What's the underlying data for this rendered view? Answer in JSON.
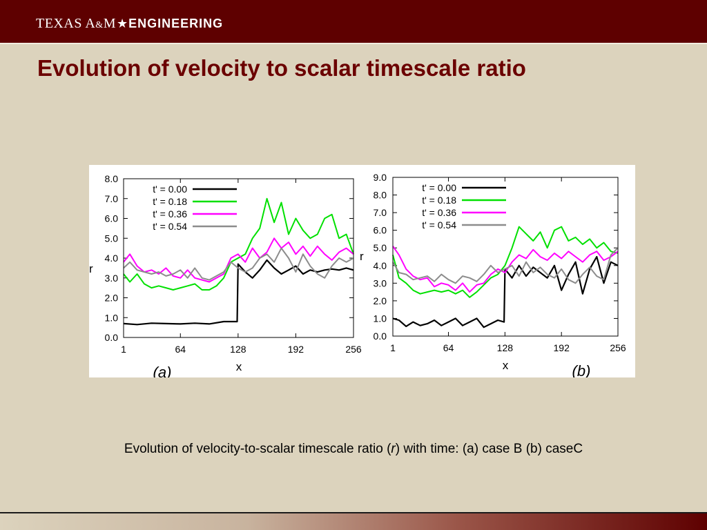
{
  "header": {
    "logo_text_1": "TEXAS A",
    "logo_amp": "&",
    "logo_text_2": "M",
    "logo_star": "★",
    "logo_text_3": "ENGINEERING"
  },
  "slide": {
    "title": "Evolution of velocity to scalar timescale ratio",
    "caption_pre": "Evolution of velocity-to-scalar timescale ratio (",
    "caption_var": "r",
    "caption_post": ") with time: (a) case B (b) caseC"
  },
  "colors": {
    "header_bg": "#5e0000",
    "title": "#6b0000",
    "slide_bg": "#dcd3bd",
    "series": [
      "#000000",
      "#00e000",
      "#ff00ff",
      "#8c8c8c"
    ]
  },
  "chart_data": [
    {
      "type": "line",
      "panel_label": "(a)",
      "xlabel": "x",
      "ylabel": "r",
      "xlim": [
        1,
        256
      ],
      "ylim": [
        0,
        8
      ],
      "xticks": [
        "1",
        "64",
        "128",
        "192",
        "256"
      ],
      "yticks": [
        "0.0",
        "1.0",
        "2.0",
        "3.0",
        "4.0",
        "5.0",
        "6.0",
        "7.0",
        "8.0"
      ],
      "legend": "top-left",
      "series": [
        {
          "name": "t' = 0.00",
          "x": [
            1,
            16,
            32,
            48,
            64,
            80,
            96,
            112,
            127,
            128,
            136,
            144,
            152,
            160,
            168,
            176,
            184,
            192,
            200,
            208,
            216,
            224,
            232,
            240,
            248,
            256
          ],
          "y": [
            0.7,
            0.65,
            0.72,
            0.7,
            0.68,
            0.72,
            0.68,
            0.8,
            0.8,
            3.7,
            3.3,
            3.0,
            3.4,
            3.9,
            3.5,
            3.2,
            3.4,
            3.6,
            3.2,
            3.4,
            3.3,
            3.4,
            3.45,
            3.4,
            3.5,
            3.4
          ]
        },
        {
          "name": "t' = 0.18",
          "x": [
            1,
            8,
            16,
            24,
            32,
            40,
            48,
            56,
            64,
            72,
            80,
            88,
            96,
            104,
            112,
            120,
            128,
            136,
            144,
            152,
            160,
            168,
            176,
            184,
            192,
            200,
            208,
            216,
            224,
            232,
            240,
            248,
            256
          ],
          "y": [
            3.2,
            2.8,
            3.2,
            2.7,
            2.5,
            2.6,
            2.5,
            2.4,
            2.5,
            2.6,
            2.7,
            2.4,
            2.4,
            2.6,
            3.0,
            3.8,
            4.0,
            4.2,
            5.0,
            5.5,
            7.0,
            5.8,
            6.8,
            5.2,
            6.0,
            5.4,
            5.0,
            5.2,
            6.0,
            6.2,
            5.0,
            5.2,
            4.2
          ]
        },
        {
          "name": "t' = 0.36",
          "x": [
            1,
            8,
            16,
            24,
            32,
            40,
            48,
            56,
            64,
            72,
            80,
            88,
            96,
            104,
            112,
            120,
            128,
            136,
            144,
            152,
            160,
            168,
            176,
            184,
            192,
            200,
            208,
            216,
            224,
            232,
            240,
            248,
            256
          ],
          "y": [
            3.8,
            4.2,
            3.6,
            3.3,
            3.4,
            3.2,
            3.5,
            3.1,
            3.0,
            3.4,
            3.0,
            2.9,
            2.8,
            3.0,
            3.2,
            4.0,
            4.2,
            3.8,
            4.5,
            4.0,
            4.3,
            5.0,
            4.5,
            4.8,
            4.2,
            4.6,
            4.1,
            4.6,
            4.2,
            3.9,
            4.3,
            4.5,
            4.2
          ]
        },
        {
          "name": "t' = 0.54",
          "x": [
            1,
            8,
            16,
            24,
            32,
            40,
            48,
            56,
            64,
            72,
            80,
            88,
            96,
            104,
            112,
            120,
            128,
            136,
            144,
            152,
            160,
            168,
            176,
            184,
            192,
            200,
            208,
            216,
            224,
            232,
            240,
            248,
            256
          ],
          "y": [
            3.5,
            3.8,
            3.4,
            3.3,
            3.2,
            3.3,
            3.1,
            3.2,
            3.4,
            3.0,
            3.5,
            3.0,
            2.9,
            3.1,
            3.3,
            3.8,
            3.5,
            3.3,
            3.5,
            4.0,
            4.2,
            3.8,
            4.5,
            4.0,
            3.3,
            4.2,
            3.6,
            3.2,
            3.0,
            3.6,
            4.0,
            3.8,
            4.0
          ]
        }
      ]
    },
    {
      "type": "line",
      "panel_label": "(b)",
      "xlabel": "x",
      "ylabel": "r",
      "xlim": [
        1,
        256
      ],
      "ylim": [
        0,
        9
      ],
      "xticks": [
        "1",
        "64",
        "128",
        "192",
        "256"
      ],
      "yticks": [
        "0.0",
        "1.0",
        "2.0",
        "3.0",
        "4.0",
        "5.0",
        "6.0",
        "7.0",
        "8.0",
        "9.0"
      ],
      "legend": "top-left",
      "series": [
        {
          "name": "t' = 0.00",
          "x": [
            1,
            8,
            16,
            24,
            32,
            40,
            48,
            56,
            64,
            72,
            80,
            88,
            96,
            104,
            112,
            120,
            127,
            128,
            136,
            144,
            152,
            160,
            168,
            176,
            184,
            192,
            200,
            208,
            216,
            224,
            232,
            240,
            248,
            256
          ],
          "y": [
            1.0,
            0.9,
            0.55,
            0.8,
            0.6,
            0.7,
            0.9,
            0.6,
            0.8,
            1.0,
            0.6,
            0.8,
            1.0,
            0.5,
            0.7,
            0.9,
            0.8,
            3.8,
            3.3,
            4.0,
            3.4,
            3.9,
            3.6,
            3.3,
            4.0,
            2.6,
            3.5,
            4.2,
            2.4,
            3.8,
            4.5,
            3.0,
            4.2,
            4.0
          ]
        },
        {
          "name": "t' = 0.18",
          "x": [
            1,
            8,
            16,
            24,
            32,
            40,
            48,
            56,
            64,
            72,
            80,
            88,
            96,
            104,
            112,
            120,
            128,
            136,
            144,
            152,
            160,
            168,
            176,
            184,
            192,
            200,
            208,
            216,
            224,
            232,
            240,
            248,
            256
          ],
          "y": [
            4.6,
            3.3,
            3.0,
            2.6,
            2.4,
            2.5,
            2.6,
            2.5,
            2.6,
            2.4,
            2.6,
            2.2,
            2.5,
            2.9,
            3.3,
            3.5,
            4.0,
            5.0,
            6.2,
            5.8,
            5.4,
            5.9,
            5.0,
            6.0,
            6.2,
            5.4,
            5.6,
            5.2,
            5.5,
            5.0,
            5.3,
            4.8,
            4.7
          ]
        },
        {
          "name": "t' = 0.36",
          "x": [
            1,
            8,
            16,
            24,
            32,
            40,
            48,
            56,
            64,
            72,
            80,
            88,
            96,
            104,
            112,
            120,
            128,
            136,
            144,
            152,
            160,
            168,
            176,
            184,
            192,
            200,
            208,
            216,
            224,
            232,
            240,
            248,
            256
          ],
          "y": [
            5.1,
            4.6,
            3.8,
            3.4,
            3.2,
            3.3,
            2.8,
            3.0,
            2.9,
            2.6,
            3.0,
            2.5,
            2.9,
            3.0,
            3.5,
            3.8,
            3.6,
            4.2,
            4.6,
            4.4,
            4.9,
            4.5,
            4.3,
            4.7,
            4.4,
            4.8,
            4.5,
            4.2,
            4.6,
            4.8,
            4.3,
            4.5,
            4.8
          ]
        },
        {
          "name": "t' = 0.54",
          "x": [
            1,
            8,
            16,
            24,
            32,
            40,
            48,
            56,
            64,
            72,
            80,
            88,
            96,
            104,
            112,
            120,
            128,
            136,
            144,
            152,
            160,
            168,
            176,
            184,
            192,
            200,
            208,
            216,
            224,
            232,
            240,
            248,
            256
          ],
          "y": [
            4.2,
            3.6,
            3.5,
            3.2,
            3.3,
            3.4,
            3.1,
            3.5,
            3.2,
            3.0,
            3.4,
            3.3,
            3.1,
            3.5,
            4.0,
            3.6,
            3.8,
            4.0,
            3.4,
            4.2,
            3.6,
            3.9,
            3.5,
            3.3,
            3.8,
            3.2,
            3.0,
            3.5,
            3.9,
            3.4,
            3.2,
            4.6,
            5.0
          ]
        }
      ]
    }
  ]
}
